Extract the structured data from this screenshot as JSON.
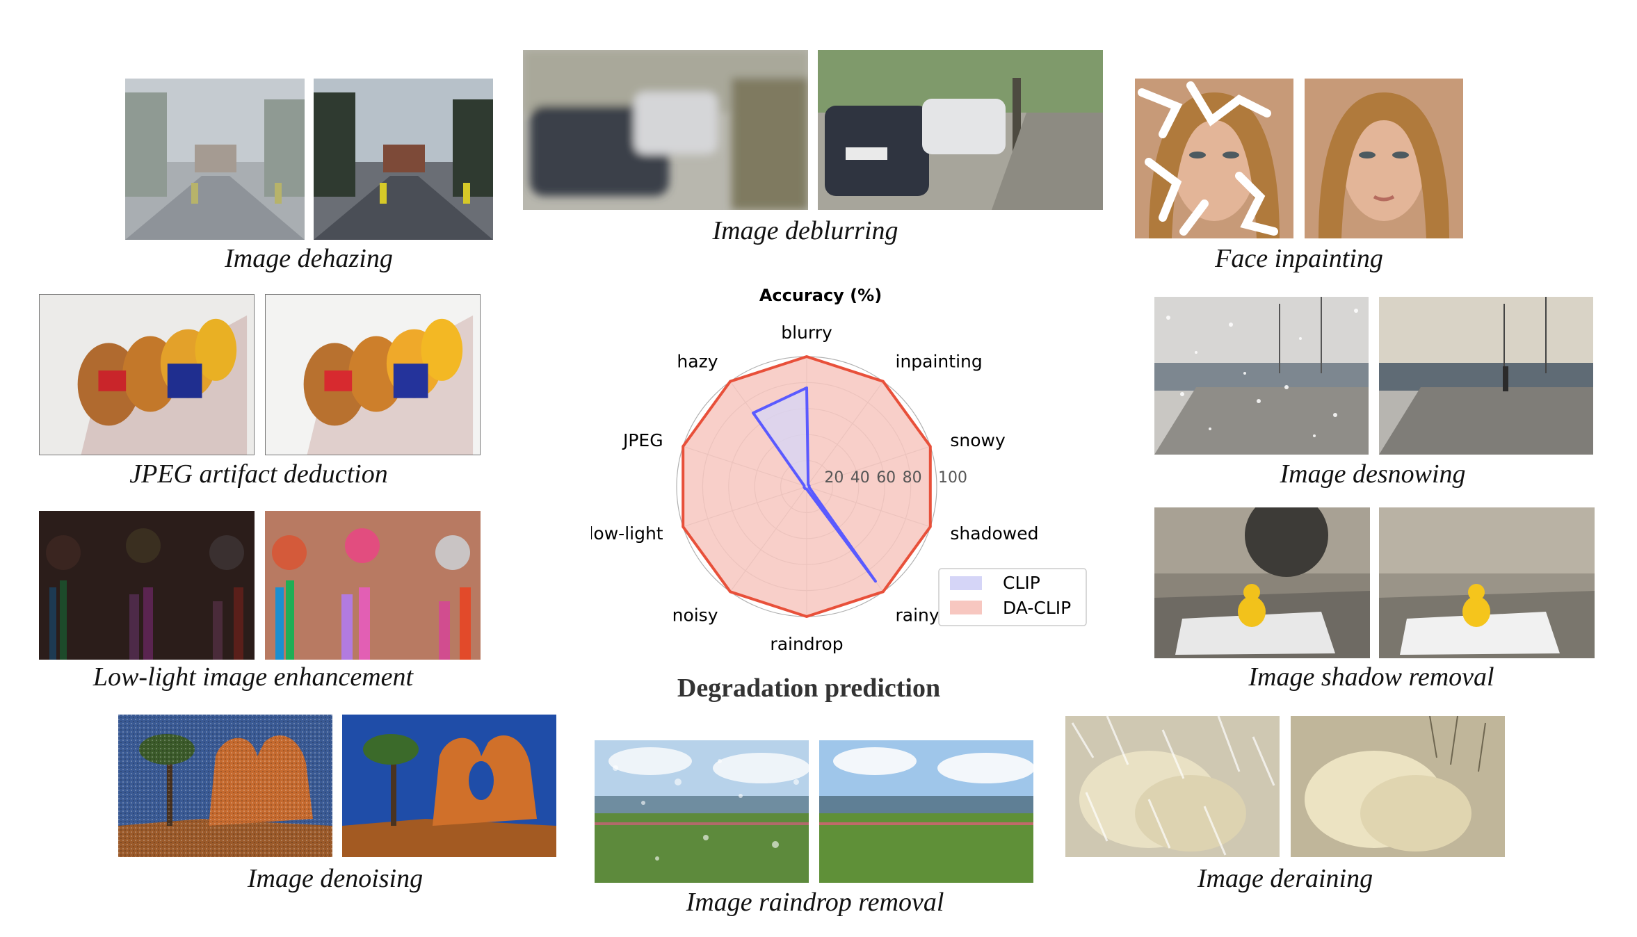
{
  "panels": {
    "dehazing": {
      "caption": "Image dehazing"
    },
    "deblurring": {
      "caption": "Image deblurring"
    },
    "inpainting": {
      "caption": "Face inpainting"
    },
    "jpeg": {
      "caption": "JPEG artifact deduction"
    },
    "desnowing": {
      "caption": "Image desnowing"
    },
    "lowlight": {
      "caption": "Low-light image enhancement"
    },
    "shadow": {
      "caption": "Image shadow removal"
    },
    "denoising": {
      "caption": "Image denoising"
    },
    "raindrop": {
      "caption": "Image raindrop removal"
    },
    "deraining": {
      "caption": "Image deraining"
    }
  },
  "center_caption": "Degradation prediction",
  "chart_data": {
    "type": "radar",
    "title": "Accuracy (%)",
    "categories": [
      "blurry",
      "inpainting",
      "snowy",
      "shadowed",
      "rainy",
      "raindrop",
      "noisy",
      "low-light",
      "JPEG",
      "hazy"
    ],
    "radial_ticks": [
      20,
      40,
      60,
      80,
      100
    ],
    "rlim": [
      0,
      100
    ],
    "series": [
      {
        "name": "CLIP",
        "values": [
          76,
          2,
          2,
          2,
          90,
          2,
          2,
          2,
          2,
          70
        ],
        "color": "#5a5aff",
        "fill": "#d5d5f7"
      },
      {
        "name": "DA-CLIP",
        "values": [
          100,
          100,
          100,
          100,
          100,
          100,
          100,
          100,
          100,
          100
        ],
        "color": "#e8503a",
        "fill": "#f7c7c0"
      }
    ],
    "legend_position": "lower-right"
  }
}
